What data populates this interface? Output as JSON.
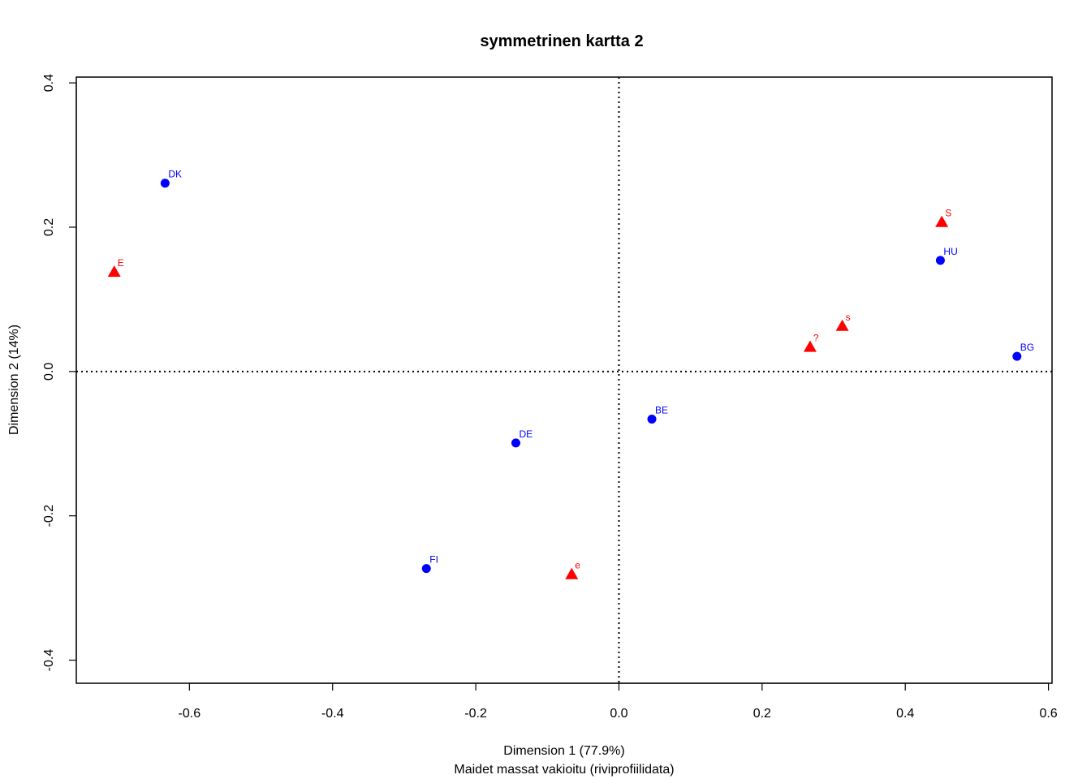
{
  "chart_data": {
    "type": "scatter",
    "title": "symmetrinen kartta 2",
    "xlabel": "Dimension 1 (77.9%)",
    "subtitle": "Maidet massat vakioitu (riviprofiilidata)",
    "ylabel": "Dimension 2 (14%)",
    "xlim": [
      -0.758,
      0.605
    ],
    "ylim": [
      -0.432,
      0.408
    ],
    "x_ticks": [
      {
        "value": -0.6,
        "label": "-0.6"
      },
      {
        "value": -0.4,
        "label": "-0.4"
      },
      {
        "value": -0.2,
        "label": "-0.2"
      },
      {
        "value": 0.0,
        "label": "0.0"
      },
      {
        "value": 0.2,
        "label": "0.2"
      },
      {
        "value": 0.4,
        "label": "0.4"
      },
      {
        "value": 0.6,
        "label": "0.6"
      }
    ],
    "y_ticks": [
      {
        "value": -0.4,
        "label": "-0.4"
      },
      {
        "value": -0.2,
        "label": "-0.2"
      },
      {
        "value": 0.0,
        "label": "0.0"
      },
      {
        "value": 0.2,
        "label": "0.2"
      },
      {
        "value": 0.4,
        "label": "0.4"
      }
    ],
    "reference_lines": {
      "x": 0.0,
      "y": 0.0,
      "style": "dotted"
    },
    "series": [
      {
        "name": "rows",
        "marker": "circle",
        "color": "#0000ff",
        "points": [
          {
            "label": "DK",
            "x": -0.634,
            "y": 0.261
          },
          {
            "label": "HU",
            "x": 0.449,
            "y": 0.154
          },
          {
            "label": "BG",
            "x": 0.556,
            "y": 0.021
          },
          {
            "label": "BE",
            "x": 0.046,
            "y": -0.066
          },
          {
            "label": "DE",
            "x": -0.144,
            "y": -0.099
          },
          {
            "label": "FI",
            "x": -0.269,
            "y": -0.273
          }
        ]
      },
      {
        "name": "columns",
        "marker": "triangle",
        "color": "#ff0000",
        "points": [
          {
            "label": "E",
            "x": -0.705,
            "y": 0.138
          },
          {
            "label": "S",
            "x": 0.451,
            "y": 0.207
          },
          {
            "label": "s",
            "x": 0.312,
            "y": 0.063
          },
          {
            "label": "?",
            "x": 0.267,
            "y": 0.034
          },
          {
            "label": "e",
            "x": -0.066,
            "y": -0.281
          }
        ]
      }
    ]
  }
}
